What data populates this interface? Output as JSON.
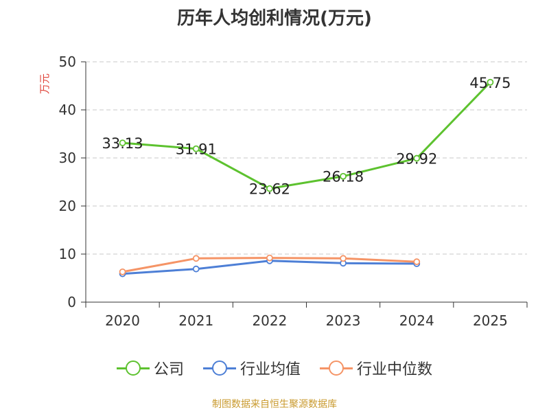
{
  "chart_data": {
    "type": "line",
    "title": "历年人均创利情况(万元)",
    "ylabel": "万元",
    "xlabel": "",
    "categories": [
      "2020",
      "2021",
      "2022",
      "2023",
      "2024",
      "2025"
    ],
    "ylim": [
      0,
      50
    ],
    "yticks": [
      0,
      10,
      20,
      30,
      40,
      50
    ],
    "grid": true,
    "legend_position": "bottom",
    "series": [
      {
        "name": "公司",
        "color": "#5dc22f",
        "values": [
          33.13,
          31.91,
          23.62,
          26.18,
          29.92,
          45.75
        ],
        "labels": [
          "33.13",
          "31.91",
          "23.62",
          "26.18",
          "29.92",
          "45.75"
        ]
      },
      {
        "name": "行业均值",
        "color": "#4d7fd6",
        "values": [
          5.9,
          6.9,
          8.6,
          8.1,
          8.0,
          null
        ]
      },
      {
        "name": "行业中位数",
        "color": "#f59466",
        "values": [
          6.3,
          9.1,
          9.2,
          9.1,
          8.4,
          null
        ]
      }
    ]
  },
  "footer": {
    "source": "制图数据来自恒生聚源数据库",
    "source_color": "#c99a2e",
    "ylabel_color": "#e0443a"
  }
}
